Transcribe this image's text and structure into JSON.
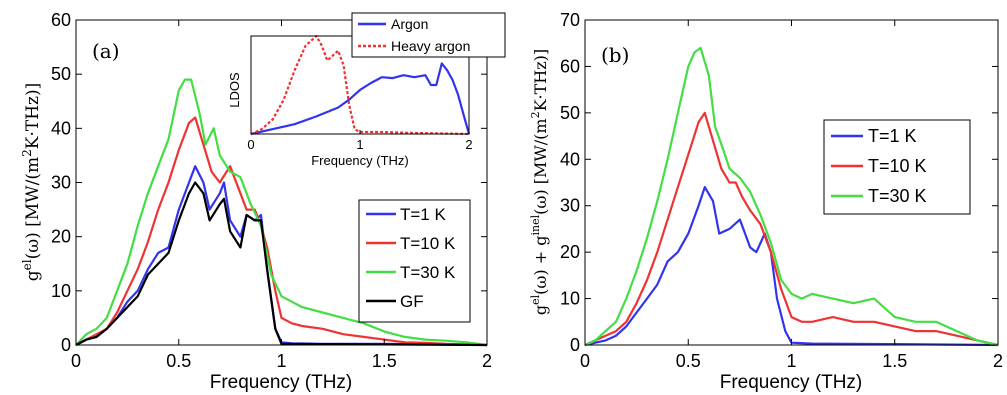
{
  "chart_data": [
    {
      "id": "a",
      "type": "line",
      "panel_label": "(a)",
      "xlabel": "Frequency (THz)",
      "ylabel_main": "g",
      "ylabel_sup": "el",
      "ylabel_tail": "(ω)  [MW/(m",
      "ylabel_sup2": "2",
      "ylabel_end": "K·THz)]",
      "xlim": [
        0,
        2
      ],
      "ylim": [
        0,
        60
      ],
      "xticks": [
        0,
        0.5,
        1,
        1.5,
        2
      ],
      "xtick_labels": [
        "0",
        "0.5",
        "1",
        "1.5",
        "2"
      ],
      "yticks": [
        0,
        10,
        20,
        30,
        40,
        50,
        60
      ],
      "ytick_labels": [
        "0",
        "10",
        "20",
        "30",
        "40",
        "50",
        "60"
      ],
      "legend_position": "lower-right",
      "series": [
        {
          "name": "T=1 K",
          "color": "#3333ee",
          "x": [
            0,
            0.05,
            0.1,
            0.15,
            0.2,
            0.25,
            0.3,
            0.35,
            0.4,
            0.45,
            0.5,
            0.55,
            0.58,
            0.62,
            0.65,
            0.7,
            0.72,
            0.75,
            0.8,
            0.83,
            0.87,
            0.9,
            0.93,
            0.97,
            1.0,
            1.05,
            1.2,
            1.5,
            2.0
          ],
          "y": [
            0,
            1,
            1.5,
            3,
            5,
            8,
            10,
            14,
            17,
            18,
            25,
            30,
            33,
            30,
            25,
            28,
            30,
            23,
            20,
            24,
            23,
            24,
            14,
            3,
            0.5,
            0.3,
            0.2,
            0.2,
            0
          ]
        },
        {
          "name": "T=10 K",
          "color": "#ee3333",
          "x": [
            0,
            0.05,
            0.1,
            0.15,
            0.2,
            0.25,
            0.3,
            0.35,
            0.4,
            0.45,
            0.5,
            0.55,
            0.58,
            0.62,
            0.66,
            0.7,
            0.75,
            0.8,
            0.83,
            0.87,
            0.9,
            0.93,
            0.97,
            1.0,
            1.05,
            1.1,
            1.2,
            1.3,
            1.4,
            1.5,
            1.6,
            1.7,
            1.8,
            2.0
          ],
          "y": [
            0,
            1,
            2,
            3,
            6,
            10,
            14,
            19,
            25,
            30,
            36,
            41,
            42,
            37,
            32,
            30,
            33,
            28,
            25,
            25,
            22,
            18,
            10,
            5,
            4,
            3.5,
            3,
            2,
            1.5,
            1,
            0.5,
            0.4,
            0.2,
            0
          ]
        },
        {
          "name": "T=30 K",
          "color": "#44dd44",
          "x": [
            0,
            0.05,
            0.1,
            0.15,
            0.2,
            0.25,
            0.3,
            0.35,
            0.4,
            0.45,
            0.5,
            0.53,
            0.56,
            0.6,
            0.63,
            0.67,
            0.7,
            0.75,
            0.8,
            0.85,
            0.9,
            0.95,
            1.0,
            1.05,
            1.1,
            1.2,
            1.3,
            1.4,
            1.5,
            1.6,
            1.7,
            1.8,
            1.9,
            2.0
          ],
          "y": [
            0,
            2,
            3,
            5,
            10,
            15,
            22,
            28,
            33,
            38,
            47,
            49,
            49,
            43,
            37,
            40,
            35,
            32,
            31,
            26,
            22,
            13,
            9,
            8,
            7,
            6,
            5,
            4,
            2.5,
            1.5,
            1,
            0.8,
            0.5,
            0
          ]
        },
        {
          "name": "GF",
          "color": "#000000",
          "x": [
            0,
            0.05,
            0.1,
            0.15,
            0.2,
            0.25,
            0.3,
            0.35,
            0.4,
            0.45,
            0.5,
            0.55,
            0.58,
            0.62,
            0.65,
            0.7,
            0.72,
            0.75,
            0.8,
            0.83,
            0.87,
            0.9,
            0.93,
            0.97,
            1.0,
            2.0
          ],
          "y": [
            0,
            1,
            1.5,
            3,
            5,
            7,
            9,
            13,
            15,
            17,
            23,
            28,
            30,
            28,
            23,
            26,
            27,
            21,
            18,
            24,
            23,
            23,
            14,
            3,
            0.2,
            0
          ]
        }
      ],
      "inset": {
        "type": "line",
        "xlabel": "Frequency (THz)",
        "ylabel": "LDOS",
        "xlim": [
          0,
          2
        ],
        "ylim": [
          0,
          1
        ],
        "xticks": [
          0,
          1,
          2
        ],
        "xtick_labels": [
          "0",
          "1",
          "2"
        ],
        "legend_position": "top",
        "series": [
          {
            "name": "Argon",
            "color": "#3333ee",
            "dash": "solid",
            "x": [
              0,
              0.2,
              0.4,
              0.6,
              0.8,
              0.9,
              1.0,
              1.1,
              1.15,
              1.2,
              1.3,
              1.4,
              1.5,
              1.6,
              1.65,
              1.7,
              1.75,
              1.8,
              1.85,
              1.9,
              1.95,
              2.0
            ],
            "y": [
              0,
              0.05,
              0.1,
              0.18,
              0.27,
              0.35,
              0.45,
              0.52,
              0.55,
              0.58,
              0.57,
              0.6,
              0.58,
              0.6,
              0.5,
              0.5,
              0.72,
              0.65,
              0.55,
              0.4,
              0.2,
              0
            ]
          },
          {
            "name": "Heavy argon",
            "color": "#ee3333",
            "dash": "dotted",
            "x": [
              0,
              0.1,
              0.2,
              0.3,
              0.4,
              0.5,
              0.55,
              0.6,
              0.65,
              0.7,
              0.75,
              0.8,
              0.85,
              0.9,
              0.95,
              1.0,
              1.2,
              1.5,
              2.0
            ],
            "y": [
              0,
              0.05,
              0.15,
              0.35,
              0.65,
              0.9,
              0.95,
              1.0,
              0.9,
              0.75,
              0.8,
              0.85,
              0.7,
              0.3,
              0.05,
              0.02,
              0.02,
              0.01,
              0
            ]
          }
        ]
      }
    },
    {
      "id": "b",
      "type": "line",
      "panel_label": "(b)",
      "xlabel": "Frequency (THz)",
      "ylabel_main": "g",
      "ylabel_sup": "el",
      "ylabel_tail": "(ω) + g",
      "ylabel_sup_inel": "inel",
      "ylabel_tail2": "(ω)  [MW/(m",
      "ylabel_sup2": "2",
      "ylabel_end": "K·THz)]",
      "xlim": [
        0,
        2
      ],
      "ylim": [
        0,
        70
      ],
      "xticks": [
        0,
        0.5,
        1,
        1.5,
        2
      ],
      "xtick_labels": [
        "0",
        "0.5",
        "1",
        "1.5",
        "2"
      ],
      "yticks": [
        0,
        10,
        20,
        30,
        40,
        50,
        60,
        70
      ],
      "ytick_labels": [
        "0",
        "10",
        "20",
        "30",
        "40",
        "50",
        "60",
        "70"
      ],
      "legend_position": "center-right",
      "series": [
        {
          "name": "T=1 K",
          "color": "#3333ee",
          "x": [
            0,
            0.05,
            0.1,
            0.15,
            0.2,
            0.25,
            0.3,
            0.35,
            0.4,
            0.45,
            0.5,
            0.55,
            0.58,
            0.62,
            0.65,
            0.7,
            0.75,
            0.8,
            0.83,
            0.87,
            0.9,
            0.93,
            0.97,
            1.0,
            1.1,
            1.5,
            2.0
          ],
          "y": [
            0,
            0.5,
            1,
            2,
            4,
            7,
            10,
            13,
            18,
            20,
            24,
            30,
            34,
            31,
            24,
            25,
            27,
            21,
            20,
            24,
            20,
            10,
            3,
            0.5,
            0.3,
            0.2,
            0
          ]
        },
        {
          "name": "T=10 K",
          "color": "#ee3333",
          "x": [
            0,
            0.05,
            0.1,
            0.15,
            0.2,
            0.25,
            0.3,
            0.35,
            0.4,
            0.45,
            0.5,
            0.55,
            0.58,
            0.62,
            0.66,
            0.7,
            0.73,
            0.76,
            0.8,
            0.85,
            0.9,
            0.95,
            1.0,
            1.05,
            1.1,
            1.2,
            1.3,
            1.4,
            1.5,
            1.6,
            1.7,
            1.8,
            1.9,
            2.0
          ],
          "y": [
            0,
            1,
            2,
            3,
            5,
            9,
            14,
            20,
            27,
            34,
            41,
            48,
            50,
            44,
            38,
            35,
            35,
            32,
            29,
            26,
            20,
            12,
            6,
            5,
            5,
            6,
            5,
            5,
            4,
            3,
            3,
            2,
            1,
            0
          ]
        },
        {
          "name": "T=30 K",
          "color": "#44dd44",
          "x": [
            0,
            0.05,
            0.1,
            0.15,
            0.2,
            0.25,
            0.3,
            0.35,
            0.4,
            0.45,
            0.5,
            0.53,
            0.56,
            0.6,
            0.63,
            0.67,
            0.7,
            0.75,
            0.8,
            0.85,
            0.9,
            0.95,
            1.0,
            1.05,
            1.1,
            1.2,
            1.3,
            1.4,
            1.5,
            1.6,
            1.7,
            1.8,
            1.9,
            2.0
          ],
          "y": [
            0,
            1,
            3,
            5,
            10,
            16,
            23,
            31,
            40,
            50,
            60,
            63,
            64,
            58,
            47,
            42,
            38,
            36,
            33,
            28,
            22,
            14,
            11,
            10,
            11,
            10,
            9,
            10,
            6,
            5,
            5,
            3,
            1,
            0
          ]
        }
      ]
    }
  ]
}
